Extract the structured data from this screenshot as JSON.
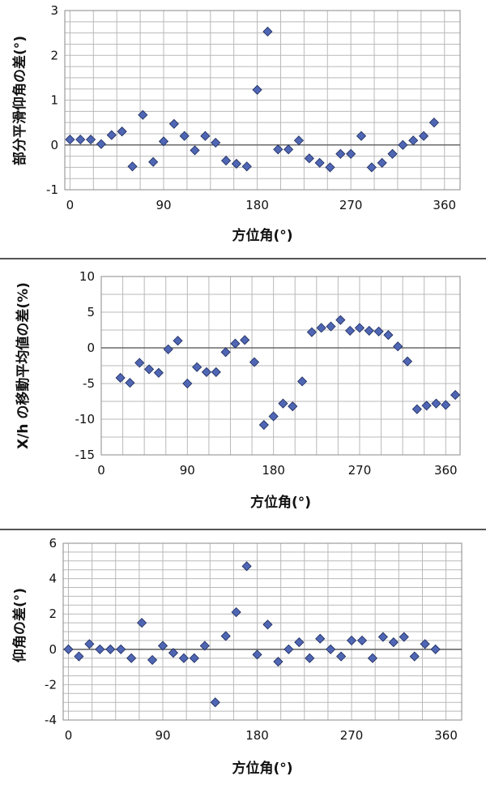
{
  "chart_data": [
    {
      "type": "scatter",
      "xlabel": "方位角(°)",
      "ylabel": "部分平滑仰角の差(°)",
      "xlim": [
        -5,
        375
      ],
      "ylim": [
        -1,
        3
      ],
      "xticks": [
        0,
        90,
        180,
        270,
        360
      ],
      "xtick_labels": [
        "0",
        "90",
        "180",
        "270",
        "360"
      ],
      "yticks": [
        -1,
        0,
        1,
        2,
        3
      ],
      "ytick_labels": [
        "-1",
        "0",
        "1",
        "2",
        "3"
      ],
      "x_grid_step": 22.5,
      "y_grid_step": 0.25,
      "marker": "diamond",
      "color": "#4f66b4",
      "grid": true,
      "points": [
        [
          0,
          0.12
        ],
        [
          10,
          0.12
        ],
        [
          20,
          0.12
        ],
        [
          30,
          0.02
        ],
        [
          40,
          0.22
        ],
        [
          50,
          0.3
        ],
        [
          60,
          -0.48
        ],
        [
          70,
          0.67
        ],
        [
          80,
          -0.38
        ],
        [
          90,
          0.08
        ],
        [
          100,
          0.47
        ],
        [
          110,
          0.2
        ],
        [
          120,
          -0.12
        ],
        [
          130,
          0.2
        ],
        [
          140,
          0.05
        ],
        [
          150,
          -0.35
        ],
        [
          160,
          -0.42
        ],
        [
          170,
          -0.48
        ],
        [
          180,
          1.23
        ],
        [
          190,
          2.53
        ],
        [
          200,
          -0.1
        ],
        [
          210,
          -0.1
        ],
        [
          220,
          0.1
        ],
        [
          230,
          -0.3
        ],
        [
          240,
          -0.4
        ],
        [
          250,
          -0.5
        ],
        [
          260,
          -0.2
        ],
        [
          270,
          -0.2
        ],
        [
          280,
          0.2
        ],
        [
          290,
          -0.5
        ],
        [
          300,
          -0.4
        ],
        [
          310,
          -0.2
        ],
        [
          320,
          0.0
        ],
        [
          330,
          0.1
        ],
        [
          340,
          0.2
        ],
        [
          350,
          0.5
        ]
      ]
    },
    {
      "type": "scatter",
      "xlabel": "方位角(°)",
      "ylabel": "X/h の移動平均値の差(%)",
      "xlim": [
        0,
        375
      ],
      "ylim": [
        -15,
        10
      ],
      "xticks": [
        0,
        90,
        180,
        270,
        360
      ],
      "xtick_labels": [
        "0",
        "90",
        "180",
        "270",
        "360"
      ],
      "yticks": [
        -15,
        -10,
        -5,
        0,
        5,
        10
      ],
      "ytick_labels": [
        "-15",
        "-10",
        "-5",
        "0",
        "5",
        "10"
      ],
      "x_grid_step": 22.5,
      "y_grid_step": 2.5,
      "marker": "diamond",
      "color": "#4f66b4",
      "grid": true,
      "points": [
        [
          20,
          -4.2
        ],
        [
          30,
          -4.9
        ],
        [
          40,
          -2.1
        ],
        [
          50,
          -3.0
        ],
        [
          60,
          -3.5
        ],
        [
          70,
          -0.2
        ],
        [
          80,
          1.0
        ],
        [
          90,
          -5.0
        ],
        [
          100,
          -2.7
        ],
        [
          110,
          -3.4
        ],
        [
          120,
          -3.4
        ],
        [
          130,
          -0.6
        ],
        [
          140,
          0.6
        ],
        [
          150,
          1.1
        ],
        [
          160,
          -2.0
        ],
        [
          170,
          -10.8
        ],
        [
          180,
          -9.6
        ],
        [
          190,
          -7.8
        ],
        [
          200,
          -8.2
        ],
        [
          210,
          -4.7
        ],
        [
          220,
          2.2
        ],
        [
          230,
          2.8
        ],
        [
          240,
          3.0
        ],
        [
          250,
          3.9
        ],
        [
          260,
          2.4
        ],
        [
          270,
          2.8
        ],
        [
          280,
          2.4
        ],
        [
          290,
          2.3
        ],
        [
          300,
          1.8
        ],
        [
          310,
          0.2
        ],
        [
          320,
          -1.9
        ],
        [
          330,
          -8.6
        ],
        [
          340,
          -8.1
        ],
        [
          350,
          -7.8
        ],
        [
          360,
          -8.0
        ],
        [
          370,
          -6.6
        ]
      ]
    },
    {
      "type": "scatter",
      "xlabel": "方位角(°)",
      "ylabel": "仰角の差(°)",
      "xlim": [
        -5,
        375
      ],
      "ylim": [
        -4,
        6
      ],
      "xticks": [
        0,
        90,
        180,
        270,
        360
      ],
      "xtick_labels": [
        "0",
        "90",
        "180",
        "270",
        "360"
      ],
      "yticks": [
        -4,
        -2,
        0,
        2,
        4,
        6
      ],
      "ytick_labels": [
        "-4",
        "-2",
        "0",
        "2",
        "4",
        "6"
      ],
      "x_grid_step": 22.5,
      "y_grid_step": 0.5,
      "marker": "diamond",
      "color": "#4f66b4",
      "grid": true,
      "points": [
        [
          0,
          0.0
        ],
        [
          10,
          -0.4
        ],
        [
          20,
          0.3
        ],
        [
          30,
          0.0
        ],
        [
          40,
          0.0
        ],
        [
          50,
          0.0
        ],
        [
          60,
          -0.5
        ],
        [
          70,
          1.5
        ],
        [
          80,
          -0.6
        ],
        [
          90,
          0.2
        ],
        [
          100,
          -0.2
        ],
        [
          110,
          -0.5
        ],
        [
          120,
          -0.5
        ],
        [
          130,
          0.2
        ],
        [
          140,
          -3.0
        ],
        [
          150,
          0.75
        ],
        [
          160,
          2.1
        ],
        [
          170,
          4.7
        ],
        [
          180,
          -0.3
        ],
        [
          190,
          1.4
        ],
        [
          200,
          -0.7
        ],
        [
          210,
          0.0
        ],
        [
          220,
          0.4
        ],
        [
          230,
          -0.5
        ],
        [
          240,
          0.6
        ],
        [
          250,
          0.0
        ],
        [
          260,
          -0.4
        ],
        [
          270,
          0.5
        ],
        [
          280,
          0.5
        ],
        [
          290,
          -0.5
        ],
        [
          300,
          0.7
        ],
        [
          310,
          0.4
        ],
        [
          320,
          0.7
        ],
        [
          330,
          -0.4
        ],
        [
          340,
          0.3
        ],
        [
          350,
          0.0
        ]
      ]
    }
  ]
}
